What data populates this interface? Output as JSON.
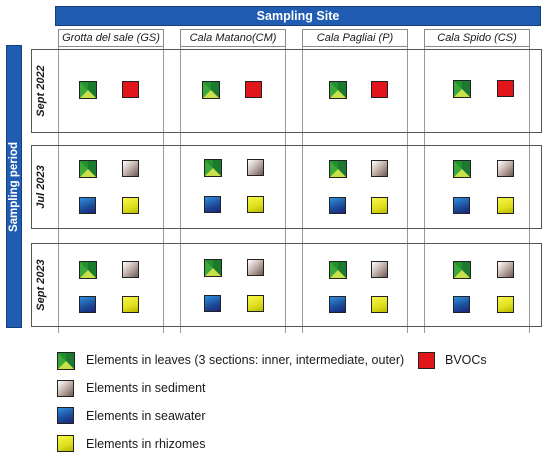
{
  "header": {
    "site_title": "Sampling Site",
    "period_title": "Sampling period"
  },
  "sites": [
    {
      "label": "Grotta del sale (GS)"
    },
    {
      "label": "Cala Matano(CM)"
    },
    {
      "label": "Cala Pagliai (P)"
    },
    {
      "label": "Cala Spido (CS)"
    }
  ],
  "periods": [
    {
      "label": "Sept 2022",
      "samples": [
        "leaves",
        "BVOCs"
      ]
    },
    {
      "label": "Jul 2023",
      "samples": [
        "leaves",
        "sediment",
        "seawater",
        "rhizomes"
      ]
    },
    {
      "label": "Sept 2023",
      "samples": [
        "leaves",
        "sediment",
        "seawater",
        "rhizomes"
      ]
    }
  ],
  "legend": {
    "leaves": "Elements in leaves (3 sections: inner, intermediate, outer)",
    "bvocs": "BVOCs",
    "sediment": "Elements in sediment",
    "seawater": "Elements in seawater",
    "rhizomes": "Elements in rhizomes"
  },
  "colors": {
    "header_blue": "#1f5cb2",
    "bvocs_red": "#e2151b",
    "leaf_dark": "#1b7a2e",
    "leaf_mid": "#3da83a",
    "leaf_light": "#c9e04a"
  }
}
